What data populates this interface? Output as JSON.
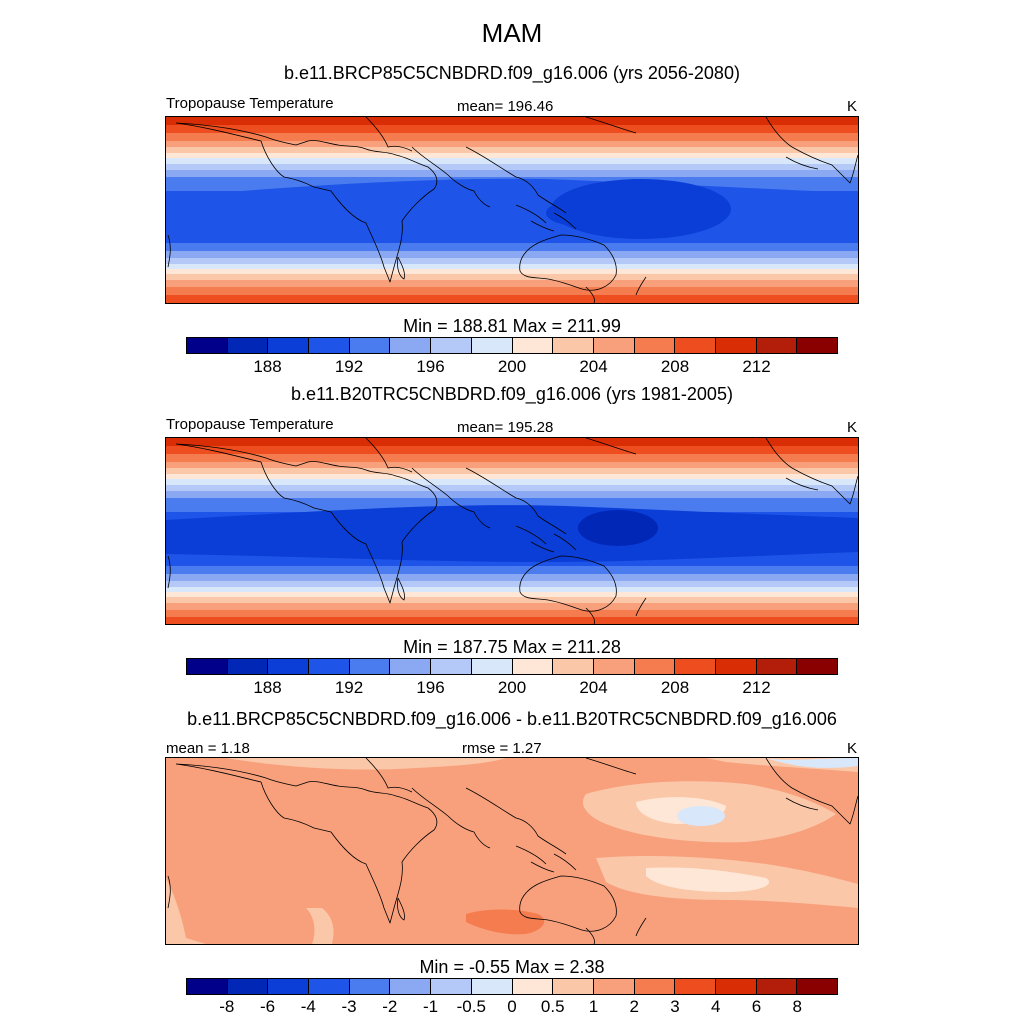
{
  "figure": {
    "title": "MAM",
    "panels": [
      {
        "subtitle": "b.e11.BRCP85C5CNBDRD.f09_g16.006 (yrs 2056-2080)",
        "left_label": "Tropopause Temperature",
        "center_label": "mean= 196.46",
        "right_label": "K",
        "minmax": "Min = 188.81 Max = 211.99",
        "colorbar_ticks": [
          "188",
          "192",
          "196",
          "200",
          "204",
          "208",
          "212"
        ]
      },
      {
        "subtitle": "b.e11.B20TRC5CNBDRD.f09_g16.006 (yrs 1981-2005)",
        "left_label": "Tropopause Temperature",
        "center_label": "mean= 195.28",
        "right_label": "K",
        "minmax": "Min = 187.75 Max = 211.28",
        "colorbar_ticks": [
          "188",
          "192",
          "196",
          "200",
          "204",
          "208",
          "212"
        ]
      },
      {
        "subtitle": "b.e11.BRCP85C5CNBDRD.f09_g16.006 - b.e11.B20TRC5CNBDRD.f09_g16.006",
        "left_label": "mean =   1.18",
        "center_label": "rmse =   1.27",
        "right_label": "K",
        "minmax": "Min =  -0.55 Max =   2.38",
        "colorbar_ticks": [
          "-8",
          "-6",
          "-4",
          "-3",
          "-2",
          "-1",
          "-0.5",
          "0",
          "0.5",
          "1",
          "2",
          "3",
          "4",
          "6",
          "8"
        ]
      }
    ],
    "palette": [
      "#00008b",
      "#0027b6",
      "#0a3ed7",
      "#1f54e8",
      "#4a7cef",
      "#8aa9f2",
      "#b4c9f7",
      "#d9e7fb",
      "#fee7d6",
      "#fbc7a9",
      "#f8a07c",
      "#f47c4e",
      "#ee4e1f",
      "#d92e05",
      "#b31e0a",
      "#8a0000"
    ]
  },
  "chart_data": [
    {
      "type": "heatmap",
      "title": "b.e11.BRCP85C5CNBDRD.f09_g16.006 (yrs 2056-2080)",
      "variable": "Tropopause Temperature",
      "units": "K",
      "mean": 196.46,
      "min": 188.81,
      "max": 211.99,
      "levels": [
        186,
        188,
        190,
        192,
        194,
        196,
        198,
        200,
        202,
        204,
        206,
        208,
        210,
        212,
        214
      ],
      "tick_labels": [
        "188",
        "192",
        "196",
        "200",
        "204",
        "208",
        "212"
      ]
    },
    {
      "type": "heatmap",
      "title": "b.e11.B20TRC5CNBDRD.f09_g16.006 (yrs 1981-2005)",
      "variable": "Tropopause Temperature",
      "units": "K",
      "mean": 195.28,
      "min": 187.75,
      "max": 211.28,
      "levels": [
        186,
        188,
        190,
        192,
        194,
        196,
        198,
        200,
        202,
        204,
        206,
        208,
        210,
        212,
        214
      ],
      "tick_labels": [
        "188",
        "192",
        "196",
        "200",
        "204",
        "208",
        "212"
      ]
    },
    {
      "type": "heatmap",
      "title": "b.e11.BRCP85C5CNBDRD.f09_g16.006 - b.e11.B20TRC5CNBDRD.f09_g16.006",
      "units": "K",
      "mean": 1.18,
      "rmse": 1.27,
      "min": -0.55,
      "max": 2.38,
      "levels": [
        -8,
        -6,
        -4,
        -3,
        -2,
        -1,
        -0.5,
        0,
        0.5,
        1,
        2,
        3,
        4,
        6,
        8
      ],
      "tick_labels": [
        "-8",
        "-6",
        "-4",
        "-3",
        "-2",
        "-1",
        "-0.5",
        "0",
        "0.5",
        "1",
        "2",
        "3",
        "4",
        "6",
        "8"
      ]
    }
  ]
}
